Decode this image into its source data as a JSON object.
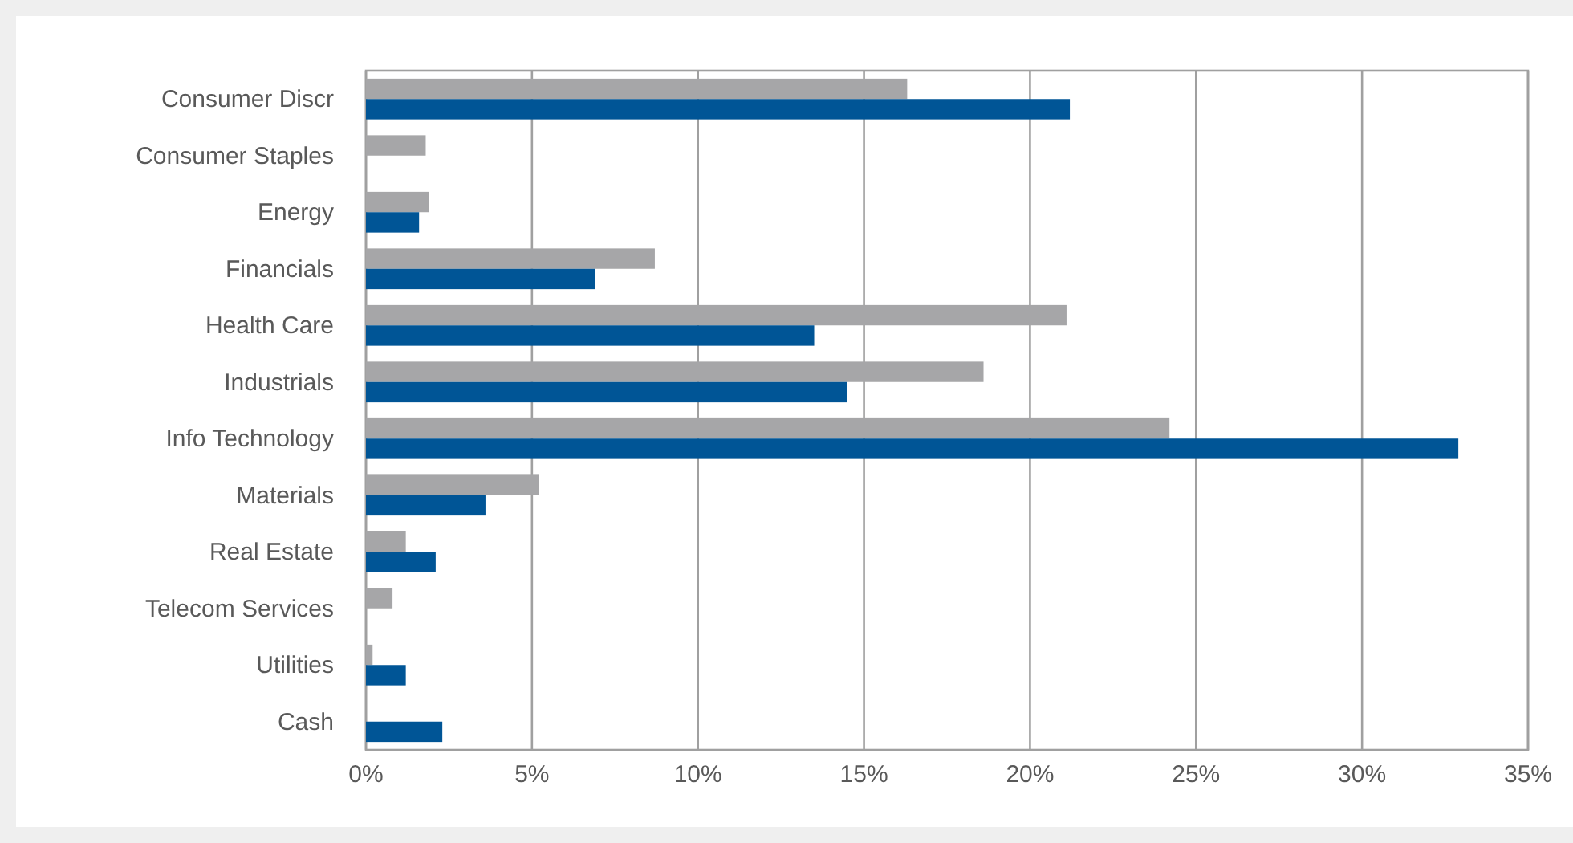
{
  "chart_data": {
    "type": "bar",
    "orientation": "horizontal",
    "categories": [
      "Consumer Discr",
      "Consumer Staples",
      "Energy",
      "Financials",
      "Health Care",
      "Industrials",
      "Info Technology",
      "Materials",
      "Real Estate",
      "Telecom Services",
      "Utilities",
      "Cash"
    ],
    "series": [
      {
        "color": "#a6a6a8",
        "values": [
          16.3,
          1.8,
          1.9,
          8.7,
          21.1,
          18.6,
          24.2,
          5.2,
          1.2,
          0.8,
          0.2,
          null
        ]
      },
      {
        "color": "#005596",
        "values": [
          21.2,
          null,
          1.6,
          6.9,
          13.5,
          14.5,
          32.9,
          3.6,
          2.1,
          null,
          1.2,
          2.3
        ]
      }
    ],
    "xlim": [
      0,
      35
    ],
    "xticks": [
      {
        "value": 0,
        "label": "0%"
      },
      {
        "value": 5,
        "label": "5%"
      },
      {
        "value": 10,
        "label": "10%"
      },
      {
        "value": 15,
        "label": "15%"
      },
      {
        "value": 20,
        "label": "20%"
      },
      {
        "value": 25,
        "label": "25%"
      },
      {
        "value": 30,
        "label": "30%"
      },
      {
        "value": 35,
        "label": "35%"
      }
    ],
    "grid": "x"
  }
}
